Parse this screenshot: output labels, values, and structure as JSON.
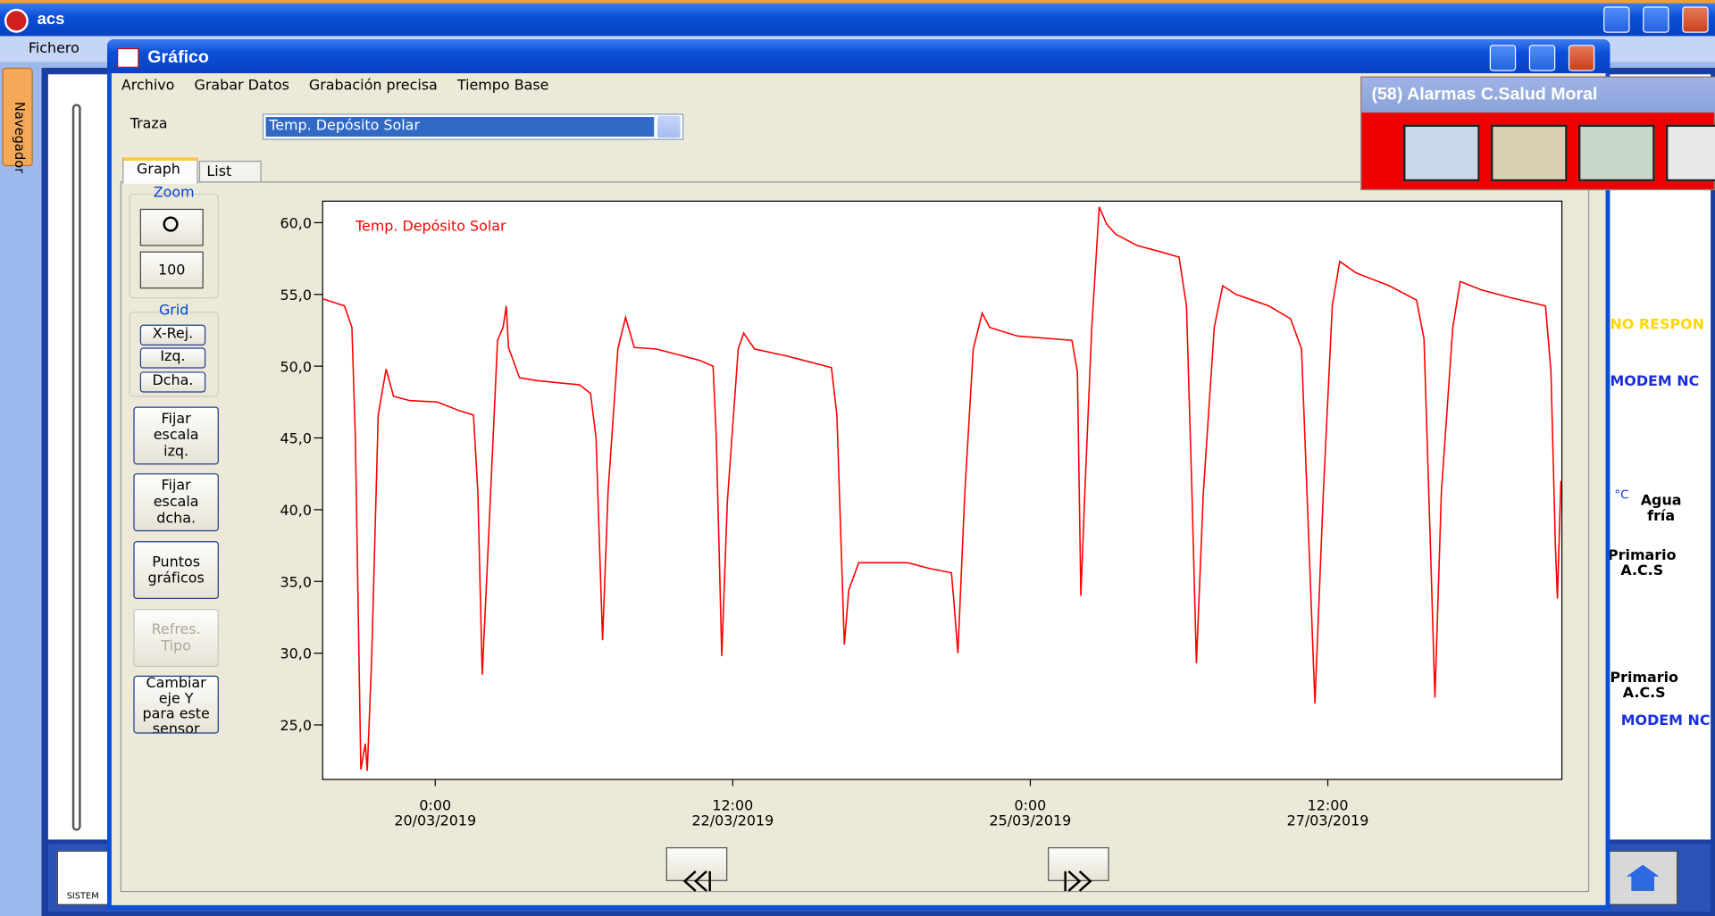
{
  "app": {
    "title": "acs",
    "menu": [
      "Fichero"
    ],
    "sidebar_tab": "Navegador",
    "footer_logo": "SISTEM"
  },
  "dialog": {
    "title": "Gráfico",
    "menu": [
      "Archivo",
      "Grabar Datos",
      "Grabación precisa",
      "Tiempo Base"
    ],
    "trace_label": "Traza",
    "trace_value": "Temp. Depósito Solar",
    "tabs": [
      "Graph",
      "List"
    ],
    "zoom": {
      "label": "Zoom",
      "value": "100"
    },
    "grid": {
      "label": "Grid",
      "buttons": [
        "X-Rej.",
        "Izq.",
        "Dcha."
      ]
    },
    "buttons": [
      "Fijar\nescala\nizq.",
      "Fijar\nescala\ndcha.",
      "Puntos\ngráficos",
      "Refres.\nTipo",
      "Cambiar\neje Y\npara este\nsensor"
    ]
  },
  "alarms": {
    "title": "(58) Alarmas C.Salud Moral"
  },
  "background_labels": [
    "NO RESPON",
    "MODEM NC",
    "°C",
    "Agua\nfría",
    "Primario\nA.C.S",
    "Primario\nA.C.S",
    "MODEM NC"
  ],
  "chart_data": {
    "type": "line",
    "x": [
      "2019-03-19T01:18",
      "2019-03-19T05:42",
      "2019-03-19T07:12",
      "2019-03-19T07:54",
      "2019-03-19T09:00",
      "2019-03-19T09:54",
      "2019-03-19T10:18",
      "2019-03-19T11:12",
      "2019-03-19T12:30",
      "2019-03-19T14:06",
      "2019-03-19T15:36",
      "2019-03-19T18:54",
      "2019-03-20T00:26",
      "2019-03-20T04:51",
      "2019-03-20T07:43",
      "2019-03-20T08:36",
      "2019-03-20T09:29",
      "2019-03-20T10:35",
      "2019-03-20T12:34",
      "2019-03-20T13:41",
      "2019-03-20T14:20",
      "2019-03-20T14:47",
      "2019-03-20T16:59",
      "2019-03-20T20:18",
      "2019-03-21T05:07",
      "2019-03-21T07:19",
      "2019-03-21T08:26",
      "2019-03-21T09:45",
      "2019-03-21T10:51",
      "2019-03-21T12:50",
      "2019-03-21T14:23",
      "2019-03-21T16:09",
      "2019-03-21T20:34",
      "2019-03-22T05:23",
      "2019-03-22T08:02",
      "2019-03-22T08:41",
      "2019-03-22T09:47",
      "2019-03-22T10:54",
      "2019-03-22T13:06",
      "2019-03-22T14:12",
      "2019-03-22T16:24",
      "2019-03-22T23:00",
      "2019-03-23T07:54",
      "2019-03-23T09:00",
      "2019-03-23T10:30",
      "2019-03-23T11:24",
      "2019-03-23T13:24",
      "2019-03-23T23:18",
      "2019-03-24T03:42",
      "2019-03-24T08:06",
      "2019-03-24T08:36",
      "2019-03-24T09:24",
      "2019-03-24T10:48",
      "2019-03-24T12:30",
      "2019-03-24T14:18",
      "2019-03-24T15:48",
      "2019-03-24T21:24",
      "2019-03-25T08:24",
      "2019-03-25T09:30",
      "2019-03-25T10:12",
      "2019-03-25T11:00",
      "2019-03-25T12:24",
      "2019-03-25T13:54",
      "2019-03-25T15:24",
      "2019-03-25T17:12",
      "2019-03-25T21:36",
      "2019-03-26T02:00",
      "2019-03-26T06:00",
      "2019-03-26T07:30",
      "2019-03-26T08:36",
      "2019-03-26T09:30",
      "2019-03-26T10:54",
      "2019-03-26T13:06",
      "2019-03-26T14:48",
      "2019-03-26T17:30",
      "2019-03-27T00:06",
      "2019-03-27T04:30",
      "2019-03-27T06:42",
      "2019-03-27T07:48",
      "2019-03-27T09:24",
      "2019-03-27T11:06",
      "2019-03-27T12:54",
      "2019-03-27T14:24",
      "2019-03-27T17:42",
      "2019-03-28T00:24",
      "2019-03-28T05:54",
      "2019-03-28T07:24",
      "2019-03-28T08:42",
      "2019-03-28T09:36",
      "2019-03-28T10:54",
      "2019-03-28T13:12",
      "2019-03-28T14:42",
      "2019-03-28T19:06",
      "2019-03-29T00:36",
      "2019-03-29T07:54",
      "2019-03-29T09:00",
      "2019-03-29T09:54",
      "2019-03-29T10:18",
      "2019-03-29T11:00"
    ],
    "series": [
      {
        "name": "Temp. Depósito Solar",
        "color": "#ff0000",
        "values": [
          54.7,
          54.2,
          52.7,
          45.0,
          21.9,
          23.7,
          21.8,
          29.8,
          46.6,
          49.8,
          47.9,
          47.6,
          47.5,
          46.9,
          46.6,
          41.2,
          28.5,
          36.7,
          51.8,
          52.7,
          54.2,
          51.3,
          49.2,
          49.0,
          48.7,
          48.1,
          45.0,
          30.9,
          41.2,
          51.2,
          53.4,
          51.3,
          51.2,
          50.4,
          50.0,
          45.0,
          29.8,
          40.5,
          51.2,
          52.3,
          51.2,
          50.7,
          49.9,
          46.6,
          30.6,
          34.4,
          36.3,
          36.3,
          35.9,
          35.6,
          33.6,
          30.0,
          41.2,
          51.2,
          53.7,
          52.7,
          52.1,
          51.8,
          49.6,
          34.0,
          41.2,
          52.7,
          61.1,
          59.9,
          59.2,
          58.4,
          58.0,
          57.6,
          54.2,
          41.2,
          29.3,
          41.2,
          52.7,
          55.6,
          55.0,
          54.2,
          53.3,
          51.2,
          41.2,
          26.5,
          41.2,
          54.2,
          57.3,
          56.5,
          55.6,
          54.6,
          51.9,
          37.4,
          26.9,
          41.2,
          52.7,
          55.9,
          55.3,
          54.8,
          54.2,
          49.6,
          37.4,
          33.8,
          42.0
        ]
      }
    ],
    "xlim": [
      "2019-03-19T01:18",
      "2019-03-29T11:12"
    ],
    "xticks": [
      {
        "value": "2019-03-20T00:00",
        "label": "0:00\n20/03/2019"
      },
      {
        "value": "2019-03-22T12:00",
        "label": "12:00\n22/03/2019"
      },
      {
        "value": "2019-03-25T00:00",
        "label": "0:00\n25/03/2019"
      },
      {
        "value": "2019-03-27T12:00",
        "label": "12:00\n27/03/2019"
      }
    ],
    "ylim": [
      21.2,
      61.5
    ],
    "yticks": [
      {
        "value": 25,
        "label": "25,0"
      },
      {
        "value": 30,
        "label": "30,0"
      },
      {
        "value": 35,
        "label": "35,0"
      },
      {
        "value": 40,
        "label": "40,0"
      },
      {
        "value": 45,
        "label": "45,0"
      },
      {
        "value": 50,
        "label": "50,0"
      },
      {
        "value": 55,
        "label": "55,0"
      },
      {
        "value": 60,
        "label": "60,0"
      }
    ]
  }
}
